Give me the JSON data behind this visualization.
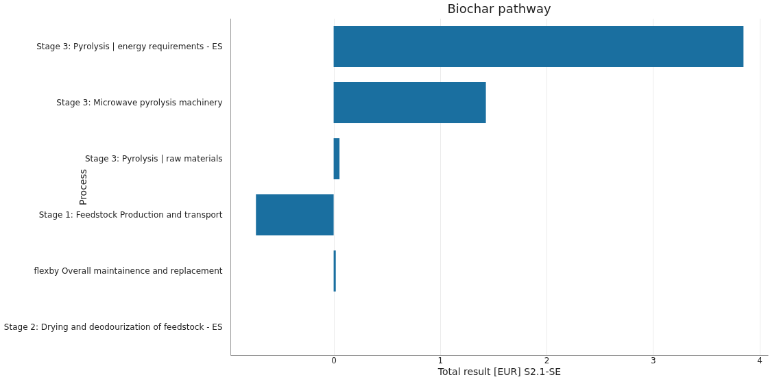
{
  "chart_data": {
    "type": "bar",
    "orientation": "horizontal",
    "title": "Biochar pathway",
    "xlabel": "Total result [EUR] S2.1-SE",
    "ylabel": "Process",
    "categories": [
      "Stage 3: Pyrolysis | energy requirements - ES",
      "Stage 3: Microwave pyrolysis machinery",
      "Stage 3: Pyrolysis | raw materials",
      "Stage 1: Feedstock Production and transport",
      "flexby Overall maintainence and replacement",
      "Stage 2: Drying and deodourization of feedstock - ES"
    ],
    "values": [
      3.85,
      1.43,
      0.055,
      -0.73,
      0.02,
      0.0
    ],
    "color": "#1a6fa0",
    "xlim": [
      -0.97,
      4.08
    ],
    "xticks": [
      0,
      1,
      2,
      3,
      4
    ],
    "grid": "x"
  }
}
